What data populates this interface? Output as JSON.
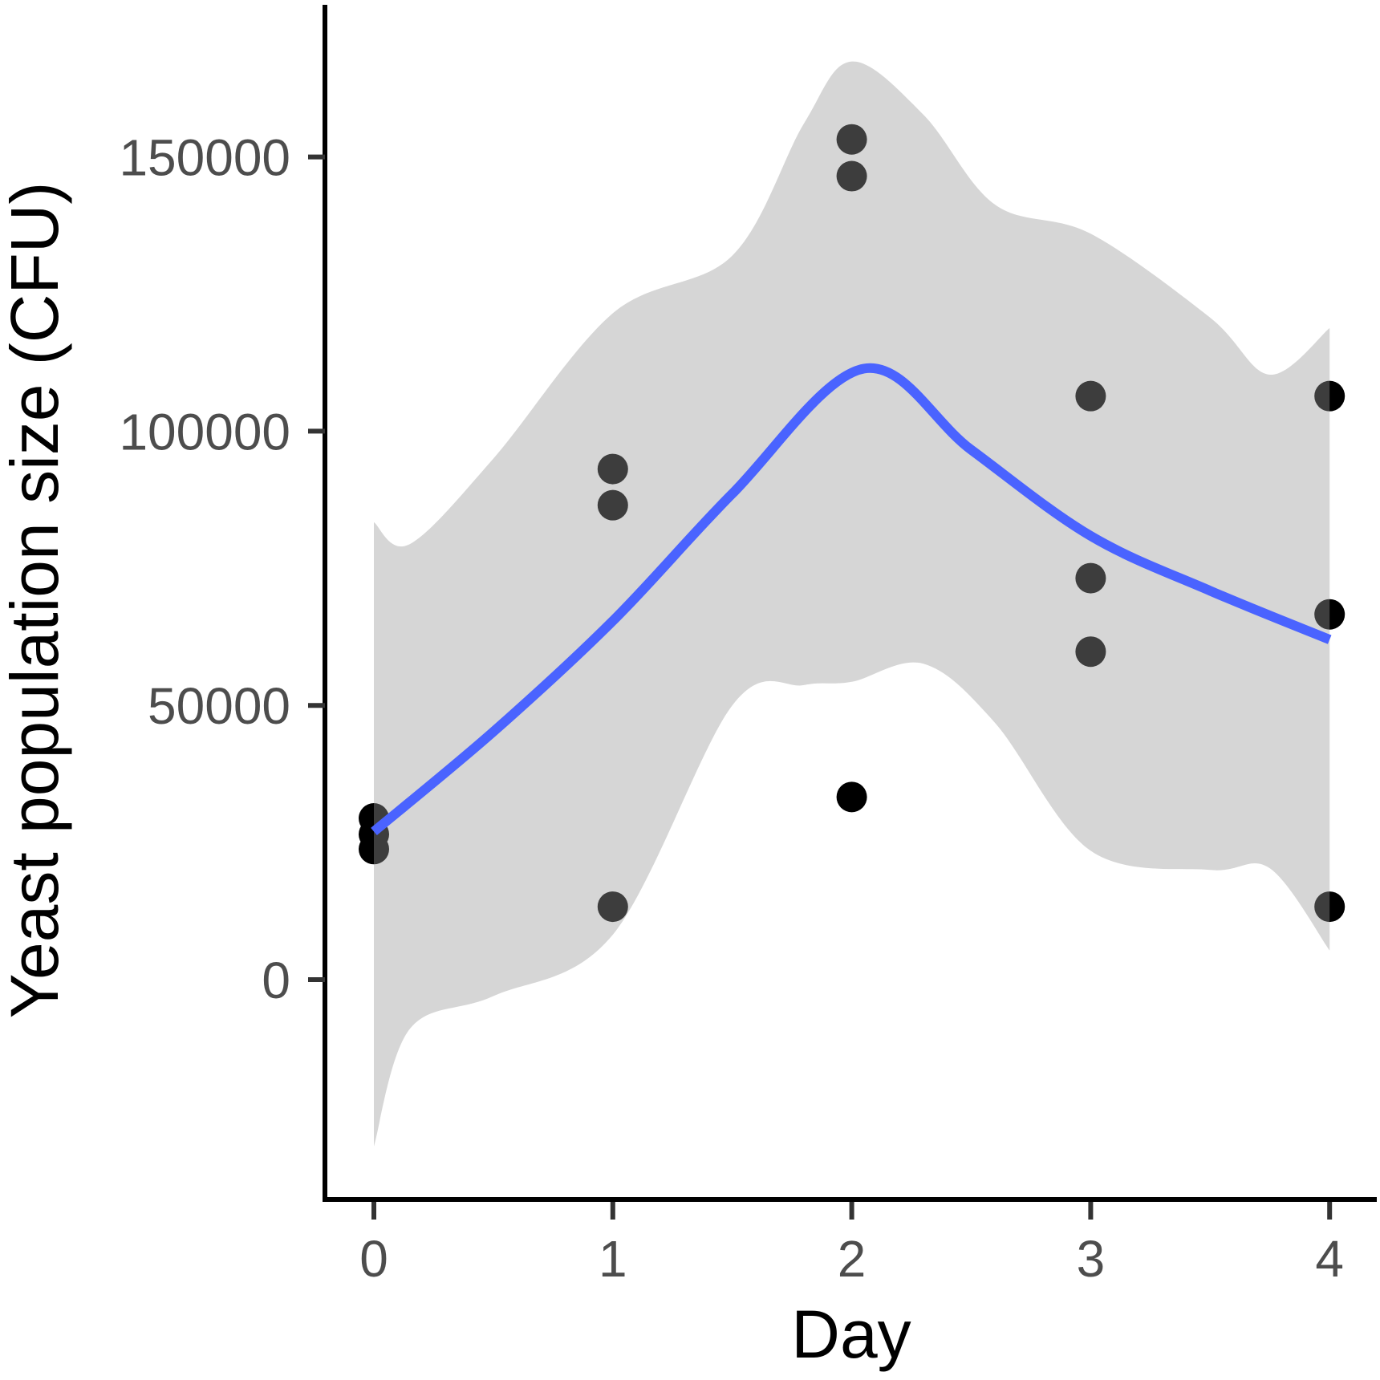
{
  "chart_data": {
    "type": "scatter",
    "title": "",
    "xlabel": "Day",
    "ylabel": "Yeast population size (CFU)",
    "xlim": [
      -0.2,
      4.19
    ],
    "ylim": [
      -40000,
      177800
    ],
    "x_ticks": [
      0,
      1,
      2,
      3,
      4
    ],
    "x_tick_labels": [
      "0",
      "1",
      "2",
      "3",
      "4"
    ],
    "y_ticks": [
      0,
      50000,
      100000,
      150000
    ],
    "y_tick_labels": [
      "0",
      "50000",
      "100000",
      "150000"
    ],
    "grid": false,
    "colors": {
      "points": "#000000",
      "smooth_line": "#4a63ff",
      "ribbon": "#999999"
    },
    "points": [
      {
        "x": 0,
        "y": 29400
      },
      {
        "x": 0,
        "y": 26500
      },
      {
        "x": 0,
        "y": 23800
      },
      {
        "x": 1,
        "y": 93100
      },
      {
        "x": 1,
        "y": 86500
      },
      {
        "x": 1,
        "y": 13300
      },
      {
        "x": 2,
        "y": 153200
      },
      {
        "x": 2,
        "y": 146500
      },
      {
        "x": 2,
        "y": 33300
      },
      {
        "x": 3,
        "y": 106400
      },
      {
        "x": 3,
        "y": 73200
      },
      {
        "x": 3,
        "y": 59800
      },
      {
        "x": 4,
        "y": 106400
      },
      {
        "x": 4,
        "y": 66600
      },
      {
        "x": 4,
        "y": 13300
      }
    ],
    "smooth_line": {
      "x": [
        0,
        0.5,
        1,
        1.5,
        2.05,
        2.5,
        3,
        3.5,
        4
      ],
      "y": [
        27000,
        45200,
        65400,
        88600,
        111400,
        96600,
        80900,
        70900,
        62000
      ]
    },
    "confidence_band": {
      "x": [
        0,
        0.15,
        0.5,
        1,
        1.5,
        1.8,
        2,
        2.3,
        2.6,
        3,
        3.5,
        3.75,
        4
      ],
      "upper": [
        83400,
        79400,
        95000,
        121500,
        132000,
        156100,
        167400,
        157700,
        141300,
        136000,
        120700,
        110300,
        118800
      ],
      "lower": [
        -30400,
        -9000,
        -3000,
        8200,
        50000,
        53700,
        54300,
        57600,
        46800,
        23500,
        20000,
        20300,
        5300
      ]
    }
  }
}
